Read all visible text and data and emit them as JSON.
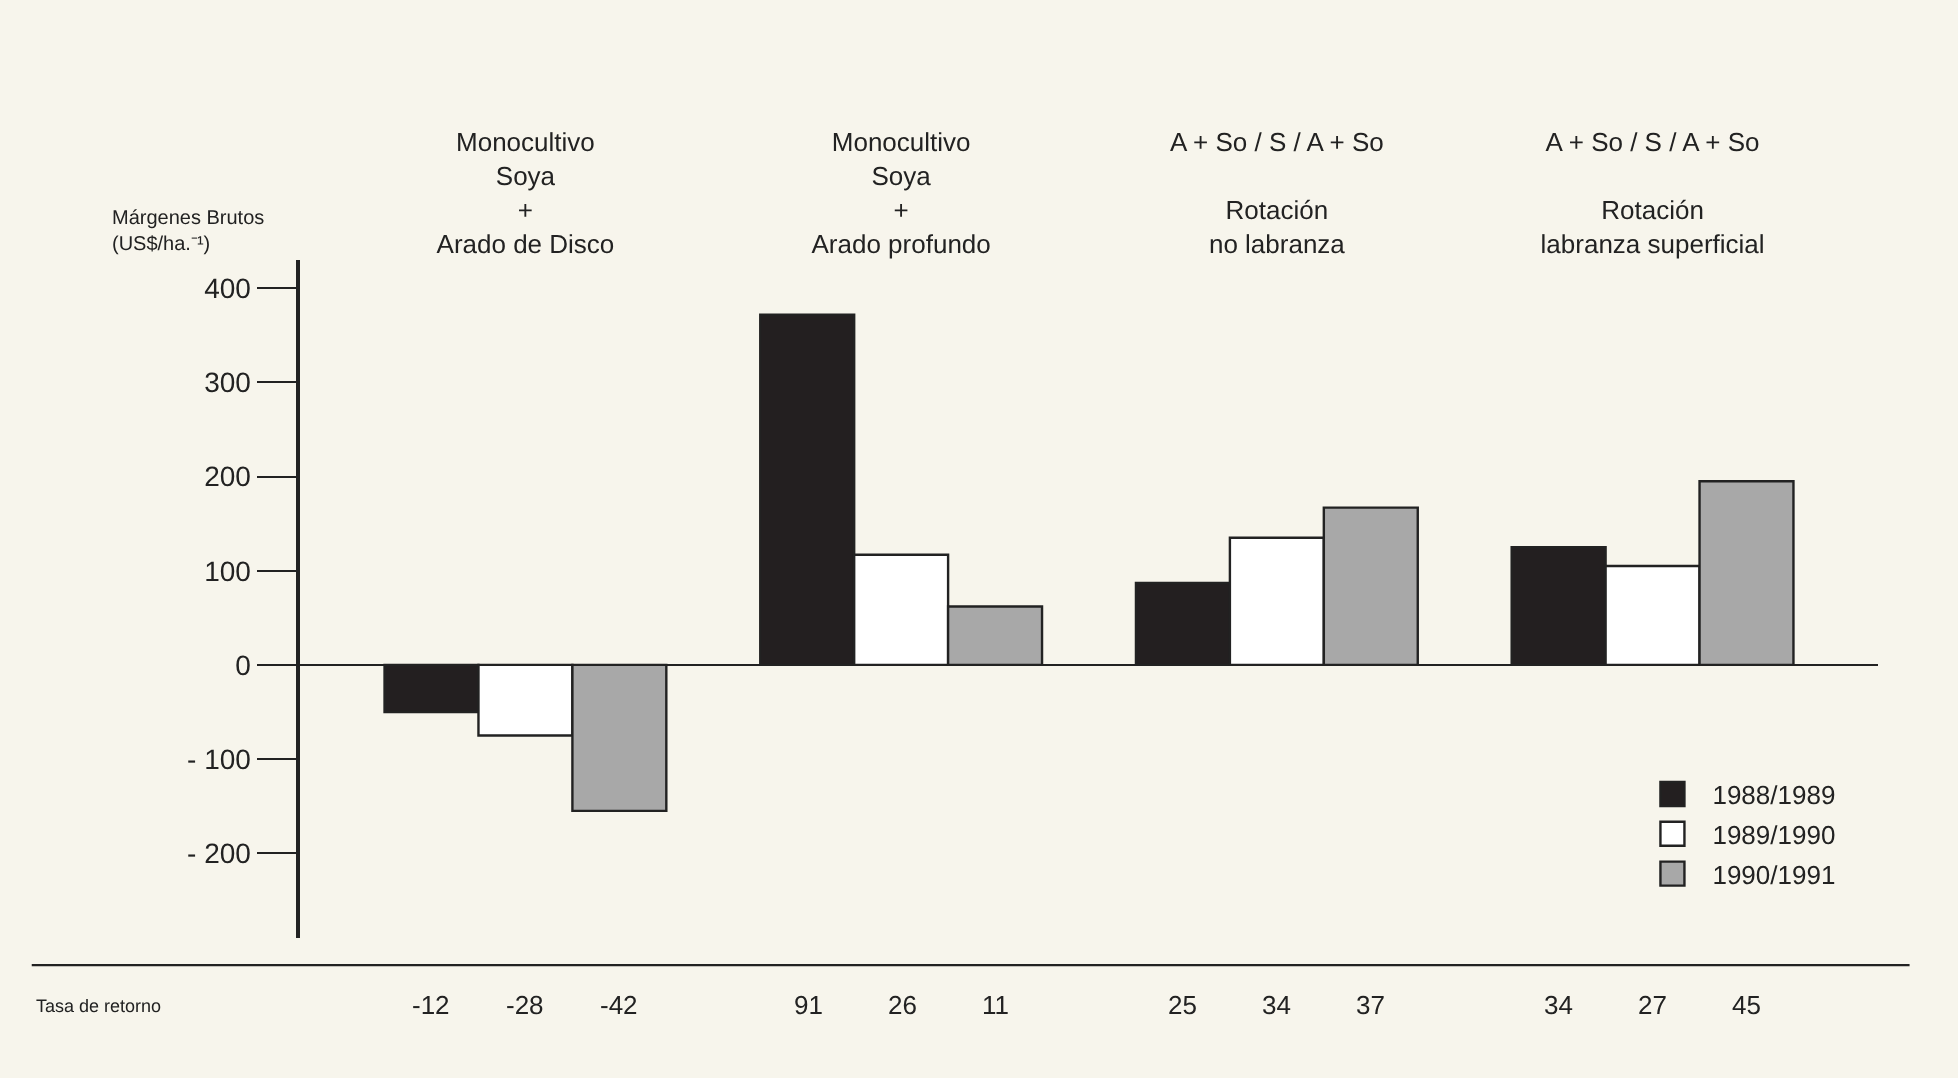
{
  "chart_data": {
    "type": "bar",
    "ylabel": "Márgenes Brutos\n(US$/ha.⁻¹)",
    "categories": [
      "Monocultivo\nSoya\n+\nArado de Disco",
      "Monocultivo\nSoya\n+\nArado profundo",
      "A + So / S / A + So\n\nRotación\nno labranza",
      "A + So / S / A + So\n\nRotación\nlabranza superficial"
    ],
    "series": [
      {
        "name": "1988/1989",
        "color": "#231f20",
        "values": [
          -50,
          372,
          87,
          125
        ]
      },
      {
        "name": "1989/1990",
        "color": "#ffffff",
        "values": [
          -75,
          117,
          135,
          105
        ]
      },
      {
        "name": "1990/1991",
        "color": "#a8a8a8",
        "values": [
          -155,
          62,
          167,
          195
        ]
      }
    ],
    "ylim": [
      -290,
      430
    ],
    "yticks": [
      400,
      300,
      200,
      100,
      0,
      {
        "value": -100,
        "label": "- 100"
      },
      {
        "value": -200,
        "label": "- 200"
      }
    ],
    "annotations": [
      "Tasa de retorno",
      "-12",
      "-28",
      "-42",
      "91",
      "26",
      "11",
      "25",
      "34",
      "37",
      "34",
      "27",
      "45"
    ],
    "legend": "bottom right"
  }
}
